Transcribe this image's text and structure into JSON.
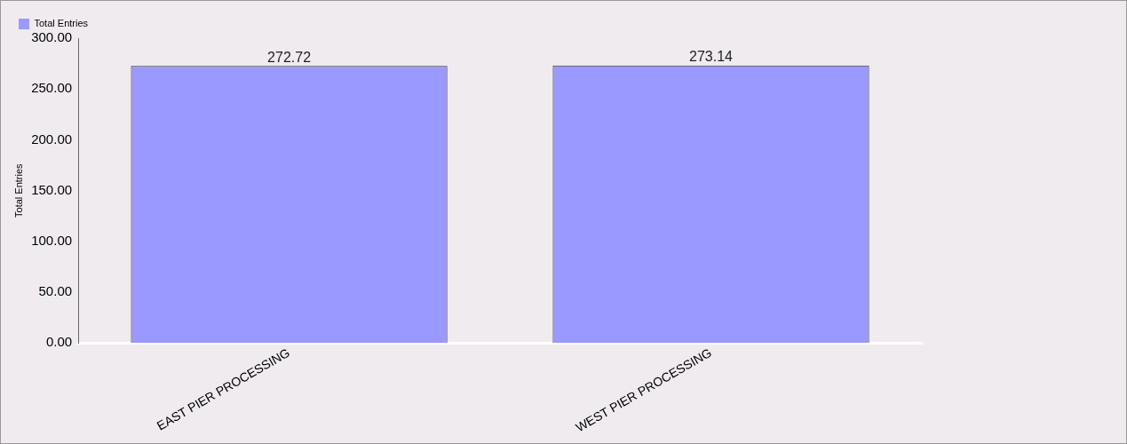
{
  "chart_data": {
    "type": "bar",
    "ylabel": "Total Entries",
    "categories": [
      "EAST PIER PROCESSING",
      "WEST PIER PROCESSING"
    ],
    "series": [
      {
        "name": "Total Entries",
        "color": "#9999ff",
        "values": [
          272.72,
          273.14
        ]
      }
    ],
    "ylim": [
      0,
      300
    ],
    "yticks": [
      {
        "value": 0,
        "label": "0.00"
      },
      {
        "value": 50,
        "label": "50.00"
      },
      {
        "value": 100,
        "label": "100.00"
      },
      {
        "value": 150,
        "label": "150.00"
      },
      {
        "value": 200,
        "label": "200.00"
      },
      {
        "value": 250,
        "label": "250.00"
      },
      {
        "value": 300,
        "label": "300.00"
      }
    ],
    "data_labels": true,
    "grid": false,
    "legend": "top left"
  }
}
